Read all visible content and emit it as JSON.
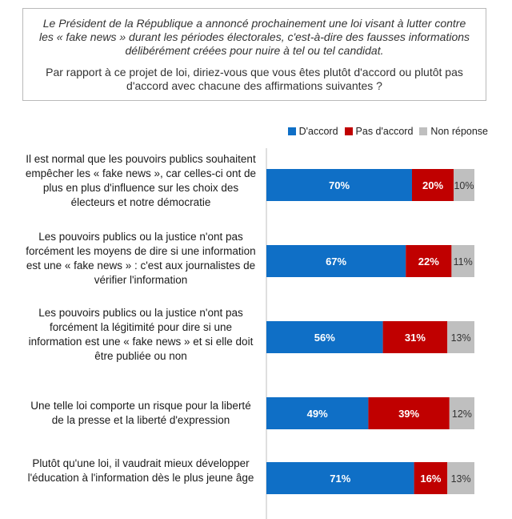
{
  "header": {
    "intro": "Le Président de la République a annoncé prochainement une loi visant à lutter contre les « fake news » durant les périodes électorales, c'est-à-dire des fausses informations délibérément créées pour nuire à tel ou tel candidat.",
    "question": "Par rapport à ce projet de loi, diriez-vous que vous êtes plutôt d'accord ou plutôt pas d'accord avec chacune des affirmations suivantes ?"
  },
  "chart_data": {
    "type": "bar",
    "orientation": "horizontal",
    "stacked": true,
    "unit": "%",
    "xlim": [
      0,
      100
    ],
    "legend_position": "top-right",
    "grid": false,
    "categories": [
      "Il est normal que les pouvoirs publics souhaitent empêcher les « fake news », car celles-ci ont de plus en plus d'influence sur les choix des électeurs et notre démocratie",
      "Les pouvoirs publics ou la justice n'ont pas forcément les moyens de dire si une information est une « fake news » : c'est aux journalistes de vérifier l'information",
      "Les pouvoirs publics ou la justice n'ont pas forcément la légitimité pour dire si une information est une « fake news » et si elle doit être publiée ou non",
      "Une telle loi comporte un risque pour la liberté de la presse et la liberté d'expression",
      "Plutôt qu'une loi, il vaudrait mieux développer l'éducation à l'information dès le plus jeune âge"
    ],
    "series": [
      {
        "name": "D'accord",
        "color": "#0f6fc6",
        "label_color": "#ffffff",
        "values": [
          70,
          67,
          56,
          49,
          71
        ]
      },
      {
        "name": "Pas d'accord",
        "color": "#c00000",
        "label_color": "#ffffff",
        "values": [
          20,
          22,
          31,
          39,
          16
        ]
      },
      {
        "name": "Non réponse",
        "color": "#bfbfbf",
        "label_color": "#333333",
        "values": [
          10,
          11,
          13,
          12,
          13
        ]
      }
    ]
  }
}
